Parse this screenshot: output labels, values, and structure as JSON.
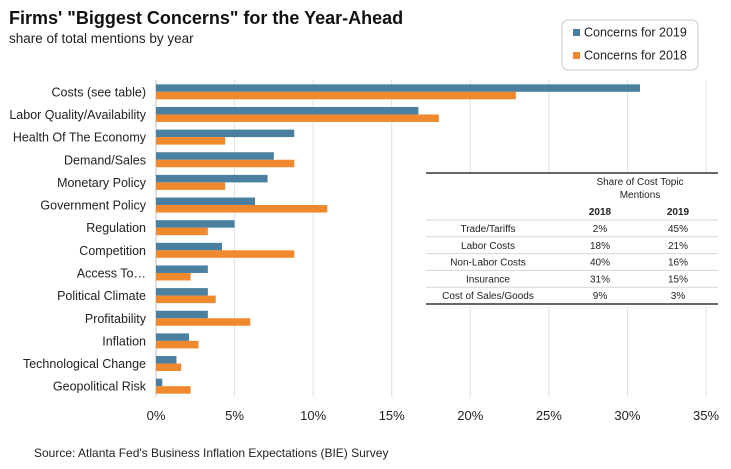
{
  "chart_data": {
    "type": "bar",
    "orientation": "horizontal",
    "title": "Firms' \"Biggest Concerns\" for the Year-Ahead",
    "subtitle": "share of total mentions by year",
    "source": "Source: Atlanta Fed's Business Inflation Expectations (BIE) Survey",
    "categories": [
      "Costs (see table)",
      "Labor Quality/Availability",
      "Health Of The Economy",
      "Demand/Sales",
      "Monetary Policy",
      "Government Policy",
      "Regulation",
      "Competition",
      "Access To…",
      "Political Climate",
      "Profitability",
      "Inflation",
      "Technological Change",
      "Geopolitical Risk"
    ],
    "series": [
      {
        "name": "Concerns for 2019",
        "color": "#4a7fa0",
        "values": [
          30.8,
          16.7,
          8.8,
          7.5,
          7.1,
          6.3,
          5.0,
          4.2,
          3.3,
          3.3,
          3.3,
          2.1,
          1.3,
          0.4
        ]
      },
      {
        "name": "Concerns for 2018",
        "color": "#f0892d",
        "values": [
          22.9,
          18.0,
          4.4,
          8.8,
          4.4,
          10.9,
          3.3,
          8.8,
          2.2,
          3.8,
          6.0,
          2.7,
          1.6,
          2.2
        ]
      }
    ],
    "xlim": [
      0,
      35
    ],
    "xticks": [
      0,
      5,
      10,
      15,
      20,
      25,
      30,
      35
    ],
    "xtick_labels": [
      "0%",
      "5%",
      "10%",
      "15%",
      "20%",
      "25%",
      "30%",
      "35%"
    ],
    "grid": "vertical",
    "legend_position": "top-right"
  },
  "cost_table": {
    "title_line1": "Share of Cost Topic",
    "title_line2": "Mentions",
    "col_2018": "2018",
    "col_2019": "2019",
    "rows": [
      {
        "label": "Trade/Tariffs",
        "v2018": "2%",
        "v2019": "45%"
      },
      {
        "label": "Labor Costs",
        "v2018": "18%",
        "v2019": "21%"
      },
      {
        "label": "Non-Labor Costs",
        "v2018": "40%",
        "v2019": "16%"
      },
      {
        "label": "Insurance",
        "v2018": "31%",
        "v2019": "15%"
      },
      {
        "label": "Cost of Sales/Goods",
        "v2018": "9%",
        "v2019": "3%"
      }
    ]
  }
}
